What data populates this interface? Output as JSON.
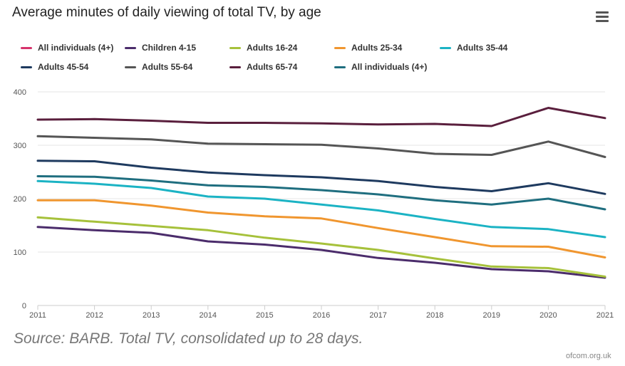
{
  "title": "Average minutes of daily viewing of total TV, by age",
  "menu": {
    "icon": "hamburger-menu-icon"
  },
  "source_note": "Source: BARB. Total TV, consolidated up to 28 days.",
  "credit": "ofcom.org.uk",
  "chart_data": {
    "type": "line",
    "title": "Average minutes of daily viewing of total TV, by age",
    "xlabel": "",
    "ylabel": "",
    "x": [
      "2011",
      "2012",
      "2013",
      "2014",
      "2015",
      "2016",
      "2017",
      "2018",
      "2019",
      "2020",
      "2021"
    ],
    "ylim": [
      0,
      400
    ],
    "yticks": [
      "0",
      "100",
      "200",
      "300",
      "400"
    ],
    "grid": true,
    "legend_position": "top",
    "series": [
      {
        "name": "All individuals (4+)",
        "color": "#d6336c",
        "values": [
          null,
          null,
          null,
          null,
          null,
          null,
          null,
          null,
          null,
          null,
          null
        ]
      },
      {
        "name": "Children 4-15",
        "color": "#4b2c6b",
        "values": [
          147,
          141,
          136,
          120,
          114,
          104,
          89,
          80,
          68,
          64,
          52
        ]
      },
      {
        "name": "Adults 16-24",
        "color": "#a6c13b",
        "values": [
          165,
          157,
          149,
          141,
          127,
          116,
          104,
          88,
          73,
          70,
          54
        ]
      },
      {
        "name": "Adults 25-34",
        "color": "#f0962f",
        "values": [
          197,
          197,
          187,
          174,
          167,
          163,
          145,
          128,
          111,
          110,
          90
        ]
      },
      {
        "name": "Adults 35-44",
        "color": "#1bb3c4",
        "values": [
          233,
          228,
          220,
          204,
          200,
          189,
          178,
          162,
          147,
          143,
          128
        ]
      },
      {
        "name": "Adults 45-54",
        "color": "#1e3a5f",
        "values": [
          271,
          270,
          258,
          249,
          244,
          240,
          233,
          222,
          214,
          229,
          209
        ]
      },
      {
        "name": "Adults 55-64",
        "color": "#555555",
        "values": [
          317,
          314,
          311,
          303,
          302,
          301,
          294,
          284,
          282,
          307,
          278
        ]
      },
      {
        "name": "Adults 65-74",
        "color": "#5a1f3d",
        "values": [
          348,
          349,
          346,
          342,
          342,
          341,
          339,
          340,
          336,
          370,
          351
        ]
      },
      {
        "name": "All individuals (4+)",
        "color": "#1f6e7f",
        "values": [
          242,
          241,
          234,
          225,
          222,
          216,
          208,
          197,
          189,
          200,
          180
        ]
      }
    ]
  }
}
